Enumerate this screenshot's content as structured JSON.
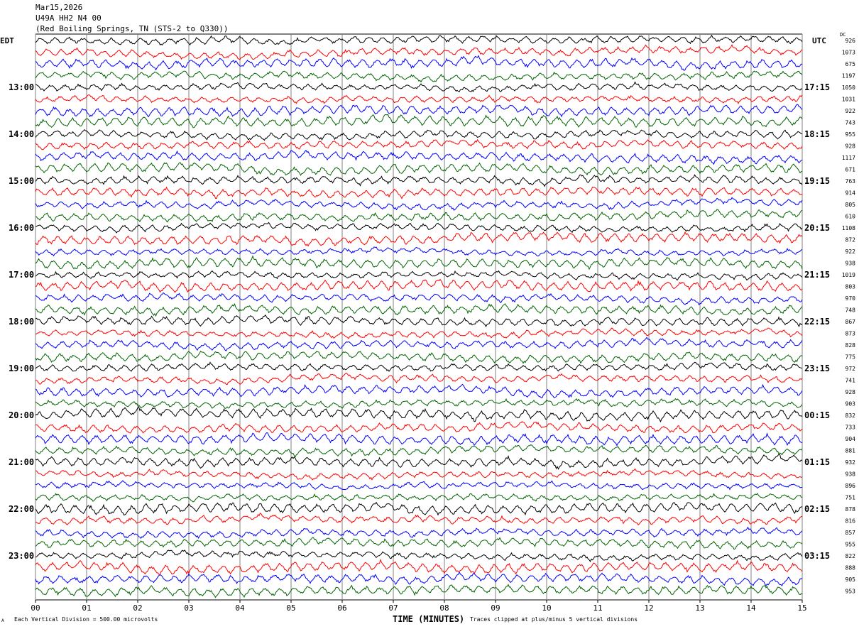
{
  "header": {
    "date": "Mar15,2026",
    "station": "U49A HH2 N4 00",
    "location": "(Red Boiling Springs, TN (STS-2 to Q330))"
  },
  "colors": {
    "trace_cycle": [
      "#000000",
      "#ff0000",
      "#0000ff",
      "#006400"
    ],
    "grid": "#808080"
  },
  "chart_data": {
    "type": "line",
    "title": "U49A HH2 N4 00 helicorder",
    "xlabel": "TIME (MINUTES)",
    "left_axis_label": "EDT",
    "right_axis_label": "UTC",
    "dc_label": "DC",
    "xlim": [
      0,
      15
    ],
    "x_ticks": [
      "00",
      "01",
      "02",
      "03",
      "04",
      "05",
      "06",
      "07",
      "08",
      "09",
      "10",
      "11",
      "12",
      "13",
      "14",
      "15"
    ],
    "traces_per_hour": 4,
    "num_traces": 48,
    "left_hour_labels": [
      "13:00",
      "14:00",
      "15:00",
      "16:00",
      "17:00",
      "18:00",
      "19:00",
      "20:00",
      "21:00",
      "22:00",
      "23:00"
    ],
    "right_hour_labels": [
      "17:15",
      "18:15",
      "19:15",
      "20:15",
      "21:15",
      "22:15",
      "23:15",
      "00:15",
      "01:15",
      "02:15",
      "03:15"
    ],
    "dc_offsets": [
      926,
      1073,
      675,
      1197,
      1050,
      1031,
      922,
      743,
      955,
      928,
      1117,
      671,
      763,
      914,
      805,
      610,
      1108,
      872,
      922,
      938,
      1019,
      803,
      970,
      748,
      867,
      873,
      828,
      775,
      972,
      741,
      928,
      903,
      832,
      733,
      904,
      881,
      932,
      938,
      896,
      751,
      878,
      816,
      857,
      955,
      822,
      888,
      905,
      953
    ]
  },
  "footer": {
    "scale_note": "Each Vertical Division =  500.00 microvolts",
    "clip_note": "Traces clipped at plus/minus 5 vertical divisions",
    "corner_mark": "A"
  }
}
